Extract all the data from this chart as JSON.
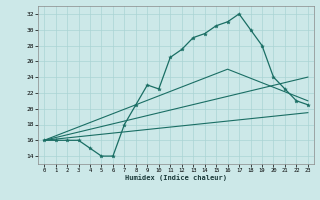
{
  "xlabel": "Humidex (Indice chaleur)",
  "bg_color": "#cce8e8",
  "grid_color": "#aad4d4",
  "line_color": "#1a6e64",
  "xlim": [
    -0.5,
    23.5
  ],
  "ylim": [
    13.0,
    33.0
  ],
  "xticks": [
    0,
    1,
    2,
    3,
    4,
    5,
    6,
    7,
    8,
    9,
    10,
    11,
    12,
    13,
    14,
    15,
    16,
    17,
    18,
    19,
    20,
    21,
    22,
    23
  ],
  "yticks": [
    14,
    16,
    18,
    20,
    22,
    24,
    26,
    28,
    30,
    32
  ],
  "main_x": [
    0,
    1,
    2,
    3,
    4,
    5,
    6,
    7,
    8,
    9,
    10,
    11,
    12,
    13,
    14,
    15,
    16,
    17,
    18,
    19,
    20,
    21,
    22,
    23
  ],
  "main_y": [
    16,
    16,
    16,
    16,
    15,
    14,
    14,
    18,
    20.5,
    23,
    22.5,
    26.5,
    27.5,
    29,
    29.5,
    30.5,
    31,
    32,
    30,
    28,
    24,
    22.5,
    21,
    20.5
  ],
  "line1_x": [
    0,
    16,
    23
  ],
  "line1_y": [
    16,
    25,
    21
  ],
  "line2_x": [
    0,
    23
  ],
  "line2_y": [
    16,
    24
  ],
  "line3_x": [
    0,
    23
  ],
  "line3_y": [
    16,
    19.5
  ]
}
